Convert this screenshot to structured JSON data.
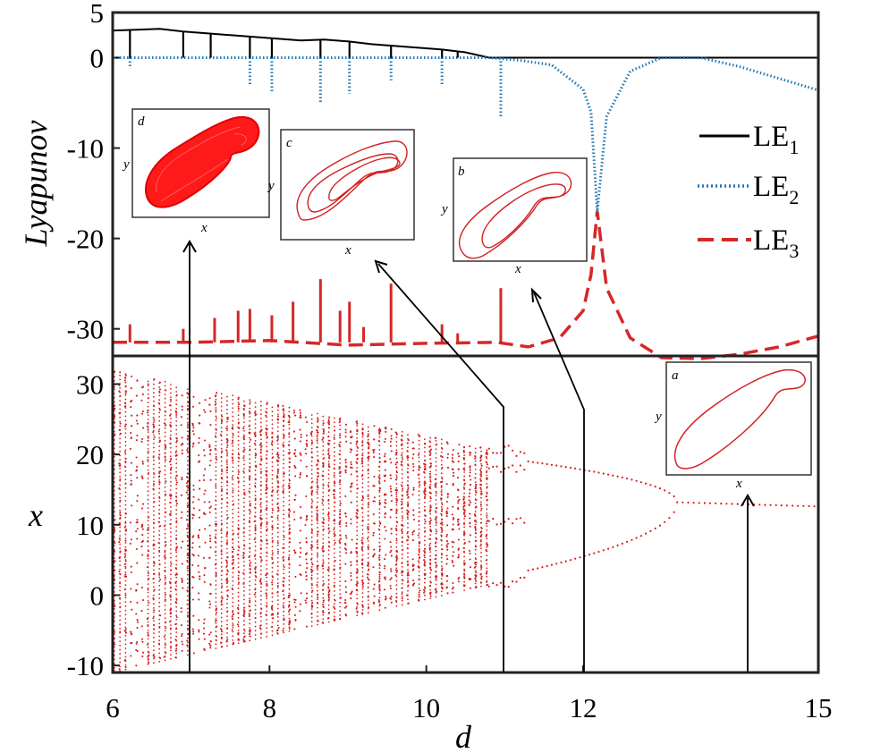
{
  "chart_data": [
    {
      "type": "line",
      "title": "",
      "ylabel": "Lyapunov",
      "xlabel": "",
      "xlim": [
        6,
        15
      ],
      "ylim": [
        -33,
        5
      ],
      "yticks": [
        5,
        0,
        -10,
        -20,
        -30
      ],
      "grid": false,
      "legend_placement": "right",
      "series": [
        {
          "name": "LE1",
          "legend_main": "LE",
          "legend_sub": "1",
          "style": "solid",
          "color": "#000000",
          "x": [
            6.0,
            6.3,
            6.6,
            6.9,
            7.2,
            7.5,
            7.8,
            8.1,
            8.4,
            8.7,
            9.0,
            9.3,
            9.6,
            9.9,
            10.2,
            10.5,
            10.8,
            11.0,
            12.0,
            13.0,
            14.0,
            15.0
          ],
          "y": [
            3.0,
            3.1,
            3.2,
            2.9,
            2.7,
            2.5,
            2.3,
            2.1,
            1.9,
            2.0,
            1.8,
            1.5,
            1.3,
            1.1,
            0.9,
            0.6,
            0.0,
            0.0,
            0.0,
            0.0,
            0.0,
            0.0
          ],
          "dips": [
            6.22,
            6.9,
            7.25,
            7.75,
            8.03,
            8.65,
            9.02,
            9.55,
            10.2,
            10.4
          ]
        },
        {
          "name": "LE2",
          "legend_main": "LE",
          "legend_sub": "2",
          "style": "dotted",
          "color": "#1f77b4",
          "x": [
            6.0,
            7.0,
            8.0,
            9.0,
            10.0,
            10.8,
            11.2,
            11.6,
            12.0,
            12.1,
            12.18,
            12.3,
            12.6,
            13.0,
            13.5,
            14.0,
            14.5,
            15.0
          ],
          "y": [
            0.0,
            0.0,
            0.0,
            0.0,
            0.0,
            0.0,
            -0.3,
            -0.8,
            -3.5,
            -6.0,
            -17.0,
            -6.5,
            -1.5,
            0.0,
            0.0,
            -1.0,
            -2.3,
            -3.6
          ],
          "dips": [
            {
              "x": 6.22,
              "y": -1.2
            },
            {
              "x": 7.75,
              "y": -3.0
            },
            {
              "x": 8.03,
              "y": -3.8
            },
            {
              "x": 8.65,
              "y": -5.1
            },
            {
              "x": 9.02,
              "y": -4.0
            },
            {
              "x": 9.55,
              "y": -2.5
            },
            {
              "x": 10.2,
              "y": -3.0
            },
            {
              "x": 10.95,
              "y": -6.6
            }
          ]
        },
        {
          "name": "LE3",
          "legend_main": "LE",
          "legend_sub": "3",
          "style": "dashed",
          "color": "#d62728",
          "x": [
            6.0,
            7.0,
            8.0,
            9.0,
            10.0,
            10.9,
            11.3,
            11.7,
            12.0,
            12.1,
            12.18,
            12.3,
            12.6,
            13.0,
            13.5,
            14.0,
            14.5,
            15.0
          ],
          "y": [
            -31.5,
            -31.5,
            -31.3,
            -31.8,
            -31.6,
            -31.5,
            -32.0,
            -31.0,
            -28.0,
            -24.0,
            -17.0,
            -25.5,
            -31.0,
            -33.2,
            -33.3,
            -32.8,
            -32.0,
            -30.8
          ],
          "spikes": [
            {
              "x": 6.22,
              "y": -29.5
            },
            {
              "x": 6.9,
              "y": -30.0
            },
            {
              "x": 7.3,
              "y": -28.8
            },
            {
              "x": 7.6,
              "y": -28.0
            },
            {
              "x": 7.75,
              "y": -27.8
            },
            {
              "x": 8.03,
              "y": -28.5
            },
            {
              "x": 8.3,
              "y": -27.0
            },
            {
              "x": 8.65,
              "y": -24.5
            },
            {
              "x": 8.9,
              "y": -28.0
            },
            {
              "x": 9.02,
              "y": -27.0
            },
            {
              "x": 9.2,
              "y": -29.8
            },
            {
              "x": 9.55,
              "y": -25.0
            },
            {
              "x": 10.2,
              "y": -29.5
            },
            {
              "x": 10.4,
              "y": -30.5
            },
            {
              "x": 10.95,
              "y": -25.5
            }
          ]
        }
      ]
    },
    {
      "type": "scatter",
      "title": "",
      "xlabel": "d",
      "ylabel": "x",
      "xlim": [
        6,
        15
      ],
      "ylim": [
        -11,
        34
      ],
      "xticks": [
        6,
        8,
        10,
        12,
        15
      ],
      "yticks": [
        30,
        20,
        10,
        0,
        -10
      ],
      "grid": false,
      "color": "#d42020",
      "description_series": [
        {
          "name": "chaotic band",
          "d_range": [
            6,
            10.8
          ],
          "x_upper": [
            32,
            20.8
          ],
          "x_lower": [
            -11,
            1.5
          ]
        },
        {
          "name": "period-4",
          "d_range": [
            10.8,
            11.3
          ],
          "branches": [
            20.5,
            18.2,
            10.5,
            1.8
          ]
        },
        {
          "name": "period-2",
          "d_range": [
            11.3,
            13.2
          ],
          "branches_start": [
            19.0,
            3.5
          ],
          "branches_end": [
            13.2,
            13.2
          ]
        },
        {
          "name": "period-1",
          "d_range": [
            13.2,
            15
          ],
          "x": [
            13.2,
            12.6
          ]
        }
      ]
    }
  ],
  "insets": [
    {
      "label": "d",
      "xlabel": "x",
      "ylabel": "y",
      "kind": "chaotic attractor",
      "points_to_d": 7.0
    },
    {
      "label": "c",
      "xlabel": "x",
      "ylabel": "y",
      "kind": "period-4 loop",
      "points_to_d": 11.0
    },
    {
      "label": "b",
      "xlabel": "x",
      "ylabel": "y",
      "kind": "period-2 loop",
      "points_to_d": 12.0
    },
    {
      "label": "a",
      "xlabel": "x",
      "ylabel": "y",
      "kind": "period-1 loop",
      "points_to_d": 14.2
    }
  ]
}
